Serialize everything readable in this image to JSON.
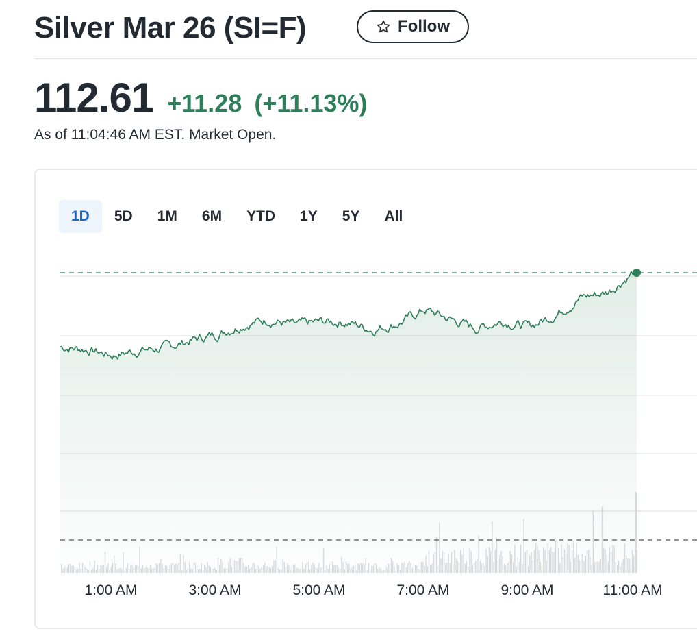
{
  "quote": {
    "title": "Silver Mar 26 (SI=F)",
    "follow_label": "Follow",
    "price": "112.61",
    "change": "+11.28",
    "change_pct": "(+11.13%)",
    "as_of": "As of 11:04:46 AM EST. Market Open."
  },
  "colors": {
    "accent_green": "#2e7d5b",
    "active_tab_blue": "#1a66c2",
    "gridline": "#dcdfe3",
    "volume_bar": "#d9dcdf"
  },
  "range_tabs": [
    {
      "label": "1D",
      "active": true
    },
    {
      "label": "5D",
      "active": false
    },
    {
      "label": "1M",
      "active": false
    },
    {
      "label": "6M",
      "active": false
    },
    {
      "label": "YTD",
      "active": false
    },
    {
      "label": "1Y",
      "active": false
    },
    {
      "label": "5Y",
      "active": false
    },
    {
      "label": "All",
      "active": false
    }
  ],
  "icons": {
    "follow": "star-outline-icon"
  },
  "chart_data": {
    "type": "area",
    "x_tick_labels": [
      "1:00 AM",
      "3:00 AM",
      "5:00 AM",
      "7:00 AM",
      "9:00 AM",
      "11:00 AM"
    ],
    "x_hours": [
      0.5,
      1.0,
      1.5,
      2.0,
      2.5,
      3.0,
      3.5,
      4.0,
      4.5,
      5.0,
      5.5,
      6.0,
      6.5,
      7.0,
      7.5,
      8.0,
      8.5,
      9.0,
      9.5,
      10.0,
      10.5,
      11.0
    ],
    "price_profile": [
      0.38,
      0.33,
      0.37,
      0.39,
      0.45,
      0.5,
      0.58,
      0.62,
      0.57,
      0.6,
      0.6,
      0.54,
      0.59,
      0.7,
      0.62,
      0.55,
      0.61,
      0.56,
      0.66,
      0.8,
      0.84,
      1.0
    ],
    "volume_profile": [
      0.15,
      0.18,
      0.14,
      0.2,
      0.16,
      0.17,
      0.22,
      0.18,
      0.19,
      0.16,
      0.17,
      0.15,
      0.14,
      0.18,
      0.35,
      0.4,
      0.38,
      0.42,
      0.45,
      0.48,
      0.44,
      1.0
    ],
    "last_value_marker": true,
    "grid": true,
    "legend": "none"
  }
}
